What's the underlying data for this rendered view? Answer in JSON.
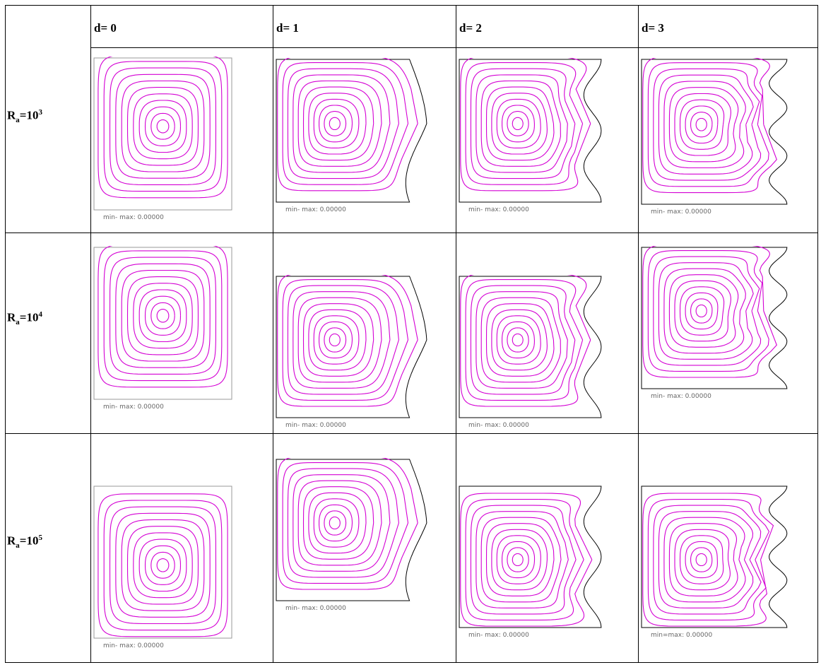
{
  "table": {
    "columns": [
      {
        "label": "d= 0",
        "d": 0
      },
      {
        "label": "d= 1",
        "d": 1
      },
      {
        "label": "d= 2",
        "d": 2
      },
      {
        "label": "d= 3",
        "d": 3
      }
    ],
    "rows": [
      {
        "prefix": "R",
        "sub": "a",
        "mid": "=10",
        "exp": "3",
        "captions": [
          "min- max: 0.00000",
          "min- max: 0.00000",
          "min- max: 0.00000",
          "min- max: 0.00000"
        ]
      },
      {
        "prefix": "R",
        "sub": "a",
        "mid": "=10",
        "exp": "4",
        "captions": [
          "min- max: 0.00000",
          "min- max: 0.00000",
          "min- max: 0.00000",
          "min- max: 0.00000"
        ]
      },
      {
        "prefix": "R",
        "sub": "a",
        "mid": "=10",
        "exp": "5",
        "captions": [
          "min- max: 0.00000",
          "min- max: 0.00000",
          "min- max: 0.00000",
          "min=max: 0.00000"
        ]
      }
    ]
  },
  "colors": {
    "streamline": "#d400d4",
    "boundary": "#000000",
    "grid": "#000000",
    "caption": "#666666"
  }
}
